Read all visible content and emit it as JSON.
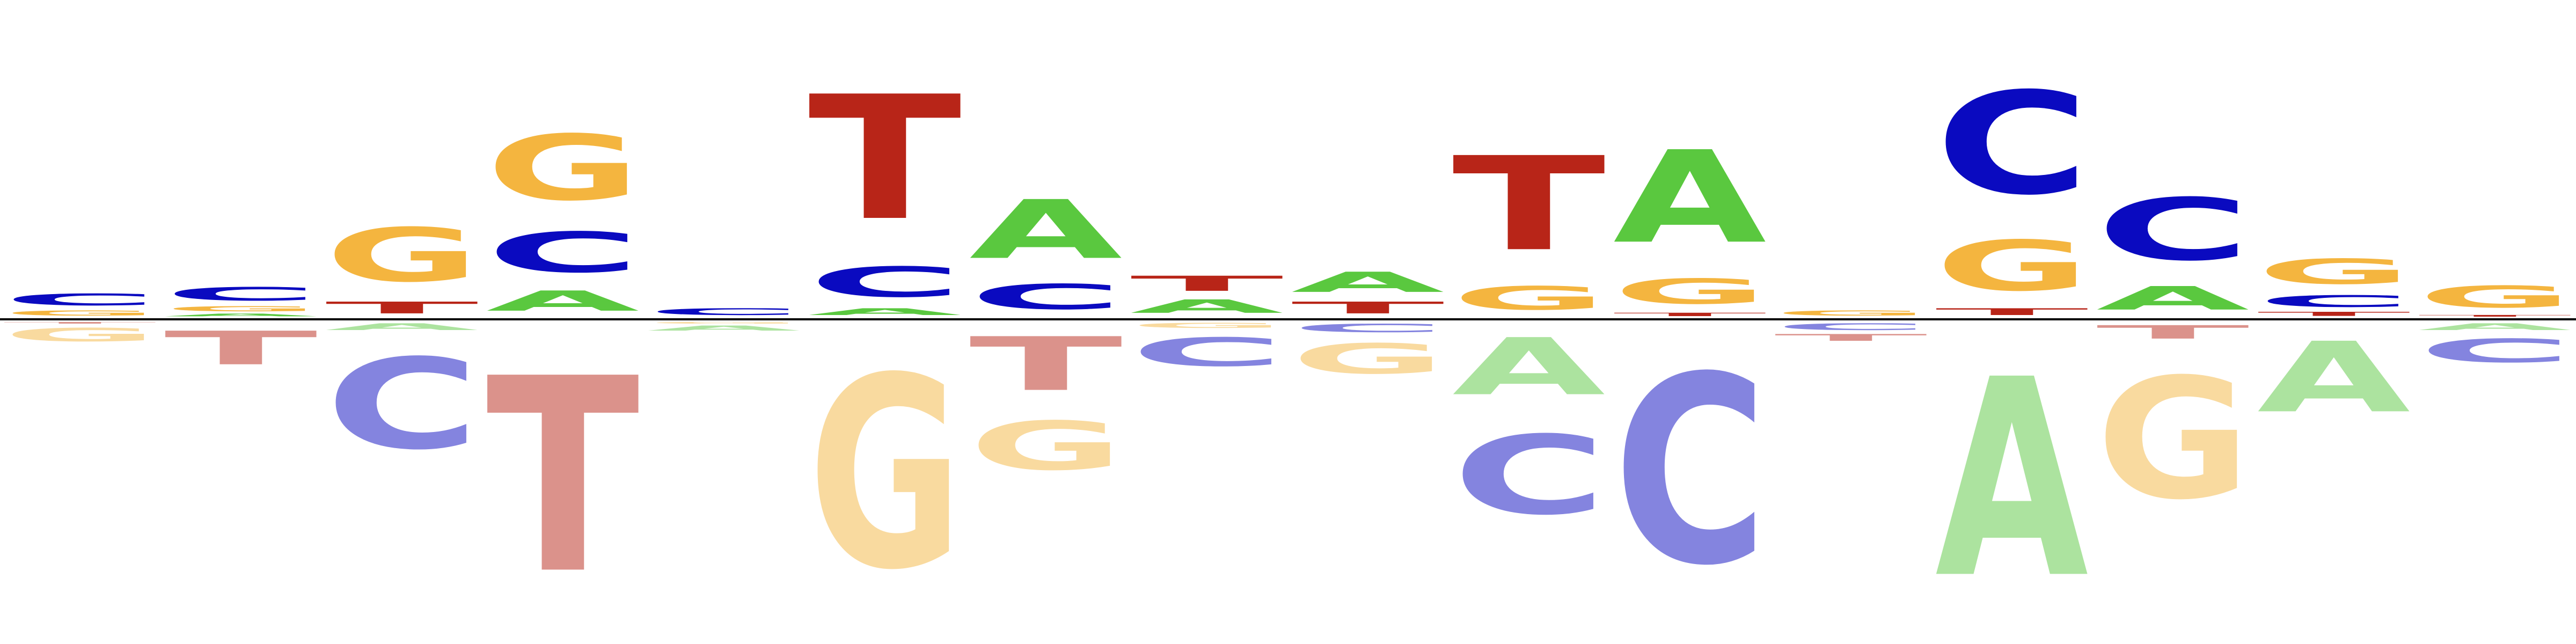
{
  "logo": {
    "colors": {
      "A": "#5ac83f",
      "C": "#0a0ac0",
      "G": "#f4b53f",
      "T": "#b82518"
    },
    "negative_opacity": 0.5,
    "positions": [
      {
        "pos": [
          [
            "G",
            0.15
          ],
          [
            "C",
            0.35
          ]
        ],
        "neg": [
          [
            "T",
            0.05
          ],
          [
            "G",
            0.4
          ]
        ]
      },
      {
        "pos": [
          [
            "A",
            0.08
          ],
          [
            "G",
            0.15
          ],
          [
            "C",
            0.4
          ]
        ],
        "neg": [
          [
            "T",
            1.0
          ]
        ]
      },
      {
        "pos": [
          [
            "T",
            0.35
          ],
          [
            "G",
            1.6
          ]
        ],
        "neg": [
          [
            "A",
            0.2
          ],
          [
            "C",
            2.7
          ]
        ]
      },
      {
        "pos": [
          [
            "A",
            0.6
          ],
          [
            "C",
            1.2
          ],
          [
            "G",
            1.95
          ]
        ],
        "neg": [
          [
            "T",
            5.8
          ]
        ]
      },
      {
        "pos": [
          [
            "C",
            0.2
          ]
        ],
        "neg": [
          [
            "G",
            0.05
          ],
          [
            "A",
            0.15
          ]
        ]
      },
      {
        "pos": [
          [
            "A",
            0.2
          ],
          [
            "C",
            0.9
          ],
          [
            "T",
            3.7
          ]
        ],
        "neg": [
          [
            "G",
            5.7
          ]
        ]
      },
      {
        "pos": [
          [
            "C",
            0.75
          ],
          [
            "A",
            1.75
          ]
        ],
        "neg": [
          [
            "T",
            1.6
          ],
          [
            "G",
            1.45
          ]
        ]
      },
      {
        "pos": [
          [
            "A",
            0.4
          ],
          [
            "T",
            0.45
          ]
        ],
        "neg": [
          [
            "G",
            0.15
          ],
          [
            "C",
            0.85
          ]
        ]
      },
      {
        "pos": [
          [
            "T",
            0.35
          ],
          [
            "A",
            0.6
          ]
        ],
        "neg": [
          [
            "C",
            0.25
          ],
          [
            "G",
            0.9
          ]
        ]
      },
      {
        "pos": [
          [
            "G",
            0.7
          ],
          [
            "T",
            2.8
          ]
        ],
        "neg": [
          [
            "A",
            1.7
          ],
          [
            "C",
            2.35
          ]
        ]
      },
      {
        "pos": [
          [
            "T",
            0.1
          ],
          [
            "G",
            0.75
          ],
          [
            "A",
            2.75
          ]
        ],
        "neg": [
          [
            "C",
            5.6
          ]
        ]
      },
      {
        "pos": [
          [
            "G",
            0.15
          ]
        ],
        "neg": [
          [
            "C",
            0.2
          ],
          [
            "T",
            0.2
          ]
        ]
      },
      {
        "pos": [
          [
            "T",
            0.2
          ],
          [
            "G",
            1.5
          ],
          [
            "C",
            3.05
          ]
        ],
        "neg": [
          [
            "A",
            5.9
          ]
        ]
      },
      {
        "pos": [
          [
            "A",
            0.7
          ],
          [
            "C",
            1.85
          ]
        ],
        "neg": [
          [
            "T",
            0.4
          ],
          [
            "G",
            3.6
          ]
        ]
      },
      {
        "pos": [
          [
            "T",
            0.12
          ],
          [
            "C",
            0.35
          ],
          [
            "G",
            0.75
          ]
        ],
        "neg": [
          [
            "A",
            2.1
          ]
        ]
      },
      {
        "pos": [
          [
            "T",
            0.05
          ],
          [
            "G",
            0.65
          ]
        ],
        "neg": [
          [
            "A",
            0.2
          ],
          [
            "C",
            0.7
          ]
        ]
      }
    ]
  }
}
